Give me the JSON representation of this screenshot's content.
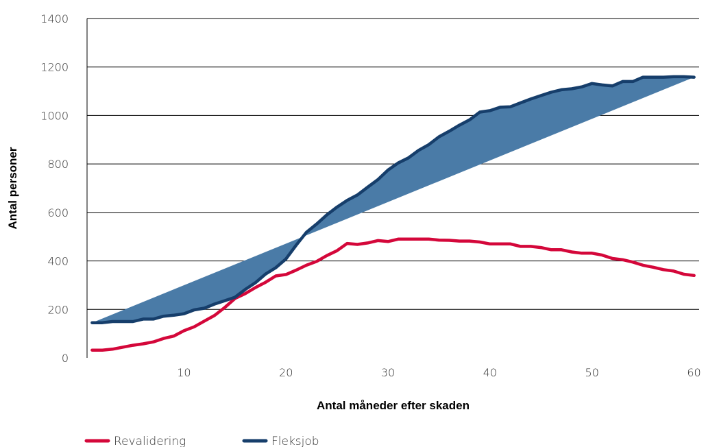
{
  "chart_data": {
    "type": "line",
    "xlabel": "Antal måneder efter skaden",
    "ylabel": "Antal personer",
    "xlim": [
      0.5,
      60.5
    ],
    "ylim": [
      0,
      1400
    ],
    "x_ticks": [
      "10",
      "20",
      "30",
      "40",
      "50",
      "60"
    ],
    "y_ticks": [
      "0",
      "200",
      "400",
      "600",
      "800",
      "1000",
      "1200",
      "1400"
    ],
    "grid": "horizontal",
    "legend_position": "bottom-left",
    "fill_between": {
      "from": [
        1,
        145
      ],
      "to": [
        60,
        1160
      ],
      "color": "#4a7ba7"
    },
    "x": [
      1,
      2,
      3,
      4,
      5,
      6,
      7,
      8,
      9,
      10,
      11,
      12,
      13,
      14,
      15,
      16,
      17,
      18,
      19,
      20,
      21,
      22,
      23,
      24,
      25,
      26,
      27,
      28,
      29,
      30,
      31,
      32,
      33,
      34,
      35,
      36,
      37,
      38,
      39,
      40,
      41,
      42,
      43,
      44,
      45,
      46,
      47,
      48,
      49,
      50,
      51,
      52,
      53,
      54,
      55,
      56,
      57,
      58,
      59,
      60
    ],
    "series": [
      {
        "name": "Revalidering",
        "color": "#d4073a",
        "values": [
          32,
          32,
          36,
          44,
          52,
          58,
          66,
          80,
          90,
          112,
          128,
          152,
          175,
          208,
          245,
          265,
          290,
          312,
          338,
          344,
          362,
          382,
          398,
          422,
          442,
          472,
          468,
          474,
          484,
          480,
          490,
          490,
          490,
          490,
          486,
          485,
          482,
          482,
          478,
          470,
          470,
          470,
          460,
          460,
          455,
          446,
          446,
          437,
          432,
          432,
          424,
          410,
          405,
          395,
          382,
          374,
          364,
          358,
          345,
          340
        ]
      },
      {
        "name": "Fleksjob",
        "color": "#163e6b",
        "values": [
          145,
          145,
          150,
          150,
          150,
          160,
          160,
          172,
          176,
          182,
          198,
          205,
          222,
          236,
          250,
          282,
          310,
          346,
          372,
          408,
          465,
          518,
          552,
          590,
          622,
          650,
          672,
          704,
          735,
          775,
          804,
          825,
          856,
          880,
          912,
          935,
          960,
          982,
          1014,
          1020,
          1034,
          1036,
          1052,
          1068,
          1082,
          1096,
          1106,
          1110,
          1118,
          1132,
          1126,
          1122,
          1140,
          1140,
          1158,
          1158,
          1158,
          1160,
          1160,
          1158
        ]
      }
    ]
  }
}
